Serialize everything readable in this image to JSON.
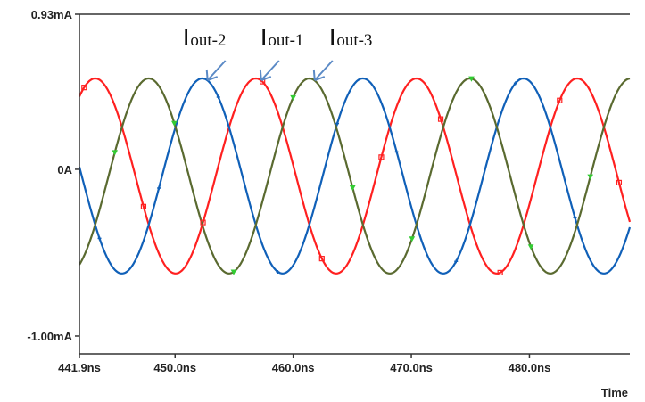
{
  "chart_data": {
    "type": "line",
    "title": "",
    "xlabel": "Time",
    "ylabel": "",
    "x_unit": "ns",
    "y_unit": "mA",
    "xlim": [
      441.9,
      488.5
    ],
    "ylim": [
      -1.107,
      0.93
    ],
    "x_ticks": [
      441.9,
      450.0,
      460.0,
      470.0,
      480.0
    ],
    "x_tick_labels": [
      "441.9ns",
      "450.0ns",
      "460.0ns",
      "470.0ns",
      "480.0ns"
    ],
    "y_ticks": [
      0.93,
      0,
      -1.0
    ],
    "y_tick_labels": [
      "0.93mA",
      "0A",
      "-1.00mA"
    ],
    "grid": false,
    "series": [
      {
        "name": "Iout-1",
        "label_main": "I",
        "label_sub": "out-1",
        "color": "#ff2020",
        "marker": "square",
        "amplitude": 0.585,
        "offset": -0.04,
        "period": 13.6,
        "peak_time": 456.84
      },
      {
        "name": "Iout-2",
        "label_main": "I",
        "label_sub": "out-2",
        "color": "#1060b8",
        "marker": "plus",
        "amplitude": 0.585,
        "offset": -0.04,
        "period": 13.6,
        "peak_time": 452.3
      },
      {
        "name": "Iout-3",
        "label_main": "I",
        "label_sub": "out-3",
        "color": "#5a6a30",
        "marker": "triangle",
        "amplitude": 0.585,
        "offset": -0.04,
        "period": 13.6,
        "peak_time": 461.37
      }
    ],
    "annotation_color": "#5b8ac6"
  }
}
